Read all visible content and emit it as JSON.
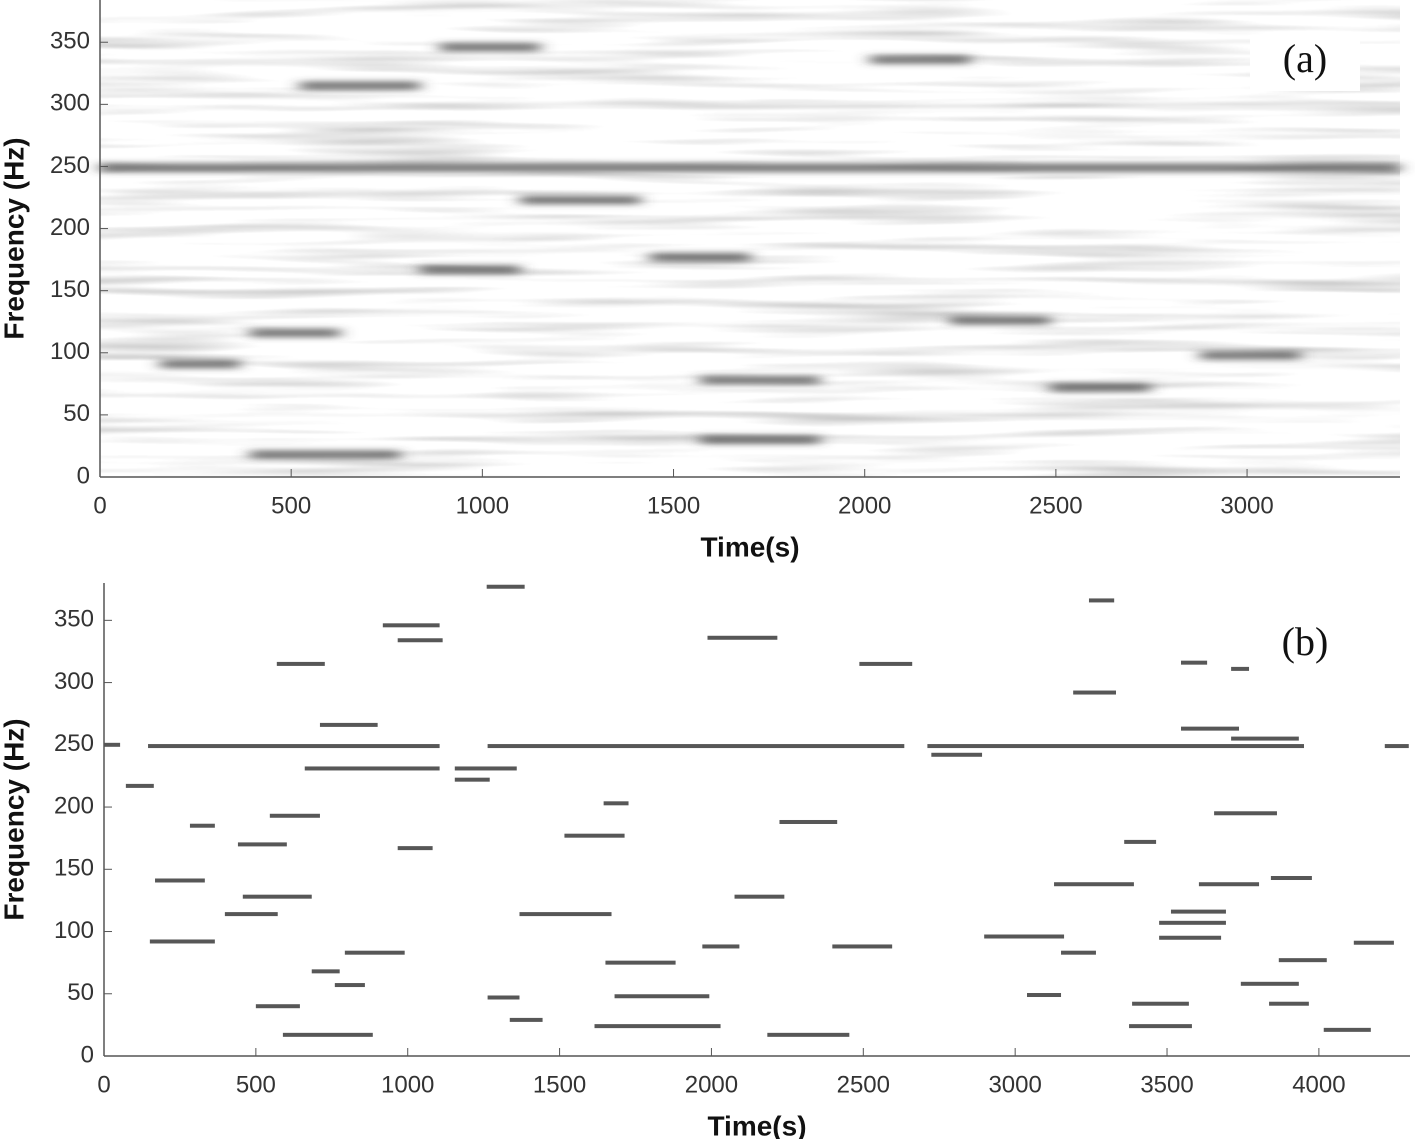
{
  "chart_data": [
    {
      "type": "spectrogram",
      "annotation": "(a)",
      "xlabel": "Time(s)",
      "ylabel": "Frequency (Hz)",
      "xlim": [
        0,
        3400
      ],
      "ylim": [
        0,
        384
      ],
      "xticks": [
        0,
        500,
        1000,
        1500,
        2000,
        2500,
        3000
      ],
      "yticks": [
        0,
        50,
        100,
        150,
        200,
        250,
        300,
        350
      ],
      "color": "#444444",
      "segments": {
        "start": [
          0,
          157,
          392,
          1569,
          1569,
          1099,
          1439,
          2877,
          837,
          2014,
          889,
          523,
          2485,
          392,
          2223
        ],
        "end": [
          3400,
          366,
          628,
          1883,
          1883,
          1413,
          1700,
          3139,
          1099,
          2276,
          1151,
          837,
          2747,
          785,
          2485
        ],
        "frequency": [
          249,
          91,
          116,
          78,
          30,
          223,
          177,
          98,
          167,
          336,
          346,
          315,
          72,
          18,
          126
        ]
      }
    },
    {
      "type": "spectrogram",
      "annotation": "(b)",
      "xlabel": "Time(s)",
      "ylabel": "Frequency (Hz)",
      "xlim": [
        0,
        4300
      ],
      "ylim": [
        0,
        380
      ],
      "xticks": [
        0,
        500,
        1000,
        1500,
        2000,
        2500,
        3000,
        3500,
        4000
      ],
      "yticks": [
        0,
        50,
        100,
        150,
        200,
        250,
        300,
        350
      ],
      "color": "#3a3a3a",
      "segments": {
        "start": [
          145,
          1263,
          2711,
          4217,
          0,
          72,
          283,
          441,
          546,
          457,
          398,
          168,
          151,
          569,
          711,
          661,
          918,
          967,
          967,
          793,
          684,
          760,
          500,
          589,
          1260,
          1155,
          1155,
          1263,
          1336,
          1368,
          1516,
          1645,
          1651,
          1681,
          1615,
          1987,
          2076,
          1970,
          2184,
          2224,
          2487,
          2398,
          2724,
          2898,
          3128,
          3039,
          3191,
          3151,
          3359,
          3385,
          3375,
          3474,
          3513,
          3474,
          3546,
          3605,
          3655,
          3711,
          3743,
          3842,
          3868,
          3836,
          4016,
          4115,
          3243,
          3546,
          3711
        ],
        "end": [
          1105,
          2635,
          3951,
          4296,
          53,
          164,
          365,
          602,
          711,
          684,
          572,
          332,
          365,
          727,
          901,
          1105,
          1105,
          1115,
          1082,
          990,
          776,
          859,
          645,
          885,
          1385,
          1359,
          1270,
          1368,
          1444,
          1671,
          1714,
          1727,
          1882,
          1993,
          2030,
          2217,
          2240,
          2092,
          2454,
          2414,
          2661,
          2595,
          2891,
          3161,
          3391,
          3151,
          3332,
          3266,
          3464,
          3572,
          3582,
          3694,
          3694,
          3678,
          3737,
          3803,
          3862,
          3934,
          3934,
          3977,
          4026,
          3967,
          4171,
          4247,
          3326,
          3632,
          3770
        ],
        "frequency": [
          249,
          249,
          249,
          249,
          250,
          217,
          185,
          170,
          193,
          128,
          114,
          141,
          92,
          315,
          266,
          231,
          346,
          334,
          167,
          83,
          68,
          57,
          40,
          17,
          377,
          231,
          222,
          47,
          29,
          114,
          177,
          203,
          75,
          48,
          24,
          336,
          128,
          88,
          17,
          188,
          315,
          88,
          242,
          96,
          138,
          49,
          292,
          83,
          172,
          42,
          24,
          107,
          116,
          95,
          263,
          138,
          195,
          255,
          58,
          143,
          77,
          42,
          21,
          91,
          366,
          316,
          311
        ]
      }
    }
  ]
}
